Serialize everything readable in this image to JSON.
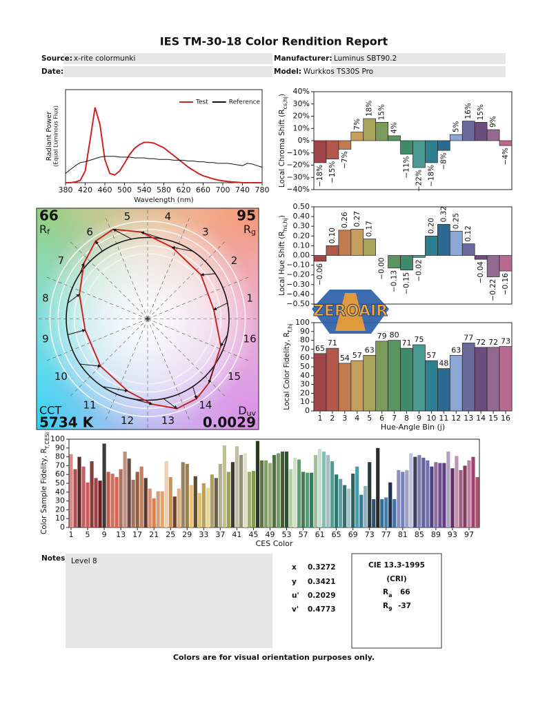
{
  "header": {
    "title": "IES TM-30-18 Color Rendition Report",
    "fields": [
      {
        "label": "Source:",
        "value": "x-rite colormunki"
      },
      {
        "label": "Manufacturer:",
        "value": "Luminus SBT90.2"
      },
      {
        "label": "Date:"
      },
      {
        "label": "Model:",
        "value": "Wurkkos TS30S Pro"
      }
    ]
  },
  "chart_data": [
    {
      "type": "line",
      "xlabel": "Wavelength (nm)",
      "ylabel": [
        "Radiant Power",
        "(Equal Luminous Flux)"
      ],
      "x": [
        380,
        390,
        400,
        410,
        420,
        430,
        440,
        450,
        460,
        470,
        480,
        490,
        500,
        510,
        520,
        530,
        540,
        550,
        560,
        570,
        580,
        590,
        600,
        610,
        620,
        630,
        640,
        650,
        660,
        670,
        680,
        690,
        700,
        710,
        720,
        730,
        740,
        750,
        760,
        770,
        780
      ],
      "series": [
        {
          "name": "Test",
          "color": "#cc2222",
          "values": [
            0,
            0,
            0.01,
            0.03,
            0.15,
            0.55,
            0.97,
            0.75,
            0.3,
            0.12,
            0.1,
            0.15,
            0.25,
            0.36,
            0.44,
            0.49,
            0.52,
            0.52,
            0.51,
            0.48,
            0.45,
            0.4,
            0.35,
            0.3,
            0.25,
            0.2,
            0.16,
            0.12,
            0.09,
            0.07,
            0.05,
            0.035,
            0.025,
            0.015,
            0.01,
            0.005,
            0,
            0,
            0,
            0,
            0
          ]
        },
        {
          "name": "Reference",
          "color": "#111111",
          "values": [
            0.12,
            0.17,
            0.22,
            0.26,
            0.27,
            0.29,
            0.31,
            0.33,
            0.34,
            0.34,
            0.34,
            0.33,
            0.33,
            0.33,
            0.32,
            0.32,
            0.32,
            0.31,
            0.31,
            0.3,
            0.3,
            0.3,
            0.29,
            0.29,
            0.29,
            0.28,
            0.28,
            0.27,
            0.27,
            0.26,
            0.26,
            0.25,
            0.25,
            0.25,
            0.24,
            0.23,
            0.22,
            0.25,
            0.24,
            0.22,
            0.2
          ]
        }
      ],
      "xlim": [
        380,
        780
      ],
      "xticks": [
        380,
        420,
        460,
        500,
        540,
        580,
        620,
        660,
        700,
        740,
        780
      ],
      "ylim": [
        0,
        1.2
      ],
      "legend": "upper right"
    },
    {
      "type": "bar",
      "ylabel": {
        "text": "Local Chroma Shift (R",
        "sub": "cs,hj",
        "tail": ")"
      },
      "values": [
        -18,
        -15,
        -7,
        7,
        18,
        15,
        4,
        -11,
        -22,
        -18,
        -8,
        5,
        16,
        15,
        9,
        -4
      ],
      "value_labels": [
        "−18%",
        "−15%",
        "−7%",
        "7%",
        "18%",
        "15%",
        "4%",
        "−11%",
        "−22%",
        "−18%",
        "−8%",
        "5%",
        "16%",
        "15%",
        "9%",
        "−4%"
      ],
      "colors": [
        "#a0454a",
        "#b3584c",
        "#c17b50",
        "#c79f5a",
        "#a7a55b",
        "#7b9b5a",
        "#5a9460",
        "#3f8b6c",
        "#4a9a92",
        "#2f7e8e",
        "#2d6a92",
        "#8ea6d6",
        "#6c6a9c",
        "#6b4d7e",
        "#94698f",
        "#b86a90"
      ],
      "ylim": [
        -40,
        40
      ],
      "yticks": [
        {
          "value": -40,
          "label": "−40%"
        },
        {
          "value": -30,
          "label": "−30%"
        },
        {
          "value": -20,
          "label": "−20%"
        },
        {
          "value": -10,
          "label": "−10%"
        },
        {
          "value": 0,
          "label": "0%"
        },
        {
          "value": 10,
          "label": "10%"
        },
        {
          "value": 20,
          "label": "20%"
        },
        {
          "value": 30,
          "label": "30%"
        },
        {
          "value": 40,
          "label": "40%"
        }
      ]
    },
    {
      "type": "bar",
      "ylabel": {
        "text": "Local Hue Shift (R",
        "sub": "hs,hj",
        "tail": ")"
      },
      "values": [
        -0.06,
        0.1,
        0.26,
        0.27,
        0.17,
        0,
        -0.13,
        -0.15,
        -0.02,
        0.2,
        0.32,
        0.25,
        0.12,
        -0.04,
        -0.22,
        -0.16
      ],
      "value_labels": [
        "−0.06",
        "0.10",
        "0.26",
        "0.27",
        "0.17",
        "−0.00",
        "−0.13",
        "−0.15",
        "−0.02",
        "0.20",
        "0.32",
        "0.25",
        "0.12",
        "−0.04",
        "−0.22",
        "−0.16"
      ],
      "colors": [
        "#a0454a",
        "#b3584c",
        "#c17b50",
        "#c79f5a",
        "#a7a55b",
        "#7b9b5a",
        "#5a9460",
        "#3f8b6c",
        "#4a9a92",
        "#2f7e8e",
        "#2d6a92",
        "#8ea6d6",
        "#6c6a9c",
        "#6b4d7e",
        "#94698f",
        "#b86a90"
      ],
      "ylim": [
        -0.5,
        0.5
      ],
      "yticks": [
        {
          "value": -0.5,
          "label": "−0.50"
        },
        {
          "value": -0.4,
          "label": "−0.40"
        },
        {
          "value": -0.3,
          "label": "−0.30"
        },
        {
          "value": -0.2,
          "label": "−0.20"
        },
        {
          "value": -0.1,
          "label": "−0.10"
        },
        {
          "value": 0,
          "label": "0.00"
        },
        {
          "value": 0.1,
          "label": "0.10"
        },
        {
          "value": 0.2,
          "label": "0.20"
        },
        {
          "value": 0.3,
          "label": "0.30"
        },
        {
          "value": 0.4,
          "label": "0.40"
        },
        {
          "value": 0.5,
          "label": "0.50"
        }
      ]
    },
    {
      "type": "bar",
      "xlabel": "Hue-Angle Bin (j)",
      "ylabel": {
        "text": "Local Color Fidelity, R",
        "sub": "f,hj"
      },
      "categories": [
        1,
        2,
        3,
        4,
        5,
        6,
        7,
        8,
        9,
        10,
        11,
        12,
        13,
        14,
        15,
        16
      ],
      "values": [
        65,
        71,
        54,
        57,
        63,
        79,
        80,
        71,
        75,
        57,
        48,
        63,
        77,
        72,
        72,
        73
      ],
      "colors": [
        "#a0454a",
        "#b3584c",
        "#c17b50",
        "#c79f5a",
        "#a7a55b",
        "#7b9b5a",
        "#5a9460",
        "#3f8b6c",
        "#4a9a92",
        "#2f7e8e",
        "#2d6a92",
        "#8ea6d6",
        "#6c6a9c",
        "#6b4d7e",
        "#94698f",
        "#b86a90"
      ],
      "ylim": [
        0,
        100
      ],
      "yticks": [
        0,
        10,
        20,
        30,
        40,
        50,
        60,
        70,
        80,
        90,
        100
      ]
    },
    {
      "type": "vector",
      "bins": [
        1,
        2,
        3,
        4,
        5,
        6,
        7,
        8,
        9,
        10,
        11,
        12,
        13,
        14,
        15,
        16
      ],
      "rf": 66,
      "rf_label": {
        "text": "R",
        "sub": "f"
      },
      "rg": 95,
      "rg_label": {
        "text": "R",
        "sub": "g"
      },
      "cct_label": "CCT",
      "cct": {
        "value": 5734,
        "label": "5734 K"
      },
      "duv_label": {
        "text": "D",
        "sub": "uv"
      },
      "duv": 0.0029,
      "test_color": "#cc2222",
      "reference_color": "#111111"
    },
    {
      "type": "bar",
      "xlabel": "CES Color",
      "ylabel": {
        "text": "Color Sample Fidelity, R",
        "sub": "f,CESi"
      },
      "categories": [
        1,
        null,
        null,
        null,
        5,
        null,
        null,
        null,
        9,
        null,
        null,
        null,
        13,
        null,
        null,
        null,
        17,
        null,
        null,
        null,
        21,
        null,
        null,
        null,
        25,
        null,
        null,
        null,
        29,
        null,
        null,
        null,
        33,
        null,
        null,
        null,
        37,
        null,
        null,
        null,
        41,
        null,
        null,
        null,
        45,
        null,
        null,
        null,
        49,
        null,
        null,
        null,
        53,
        null,
        null,
        null,
        57,
        null,
        null,
        null,
        61,
        null,
        null,
        null,
        65,
        null,
        null,
        null,
        69,
        null,
        null,
        null,
        73,
        null,
        null,
        null,
        77,
        null,
        null,
        null,
        81,
        null,
        null,
        null,
        85,
        null,
        null,
        null,
        89,
        null,
        null,
        null,
        93,
        null,
        null,
        null,
        97,
        null,
        null
      ],
      "values": [
        83,
        66,
        80,
        69,
        51,
        75,
        56,
        53,
        95,
        63,
        61,
        57,
        66,
        86,
        78,
        54,
        63,
        69,
        56,
        44,
        33,
        41,
        41,
        75,
        57,
        35,
        44,
        74,
        72,
        48,
        58,
        39,
        50,
        45,
        60,
        56,
        72,
        93,
        63,
        74,
        92,
        82,
        84,
        63,
        64,
        98,
        76,
        76,
        73,
        82,
        84,
        86,
        86,
        66,
        79,
        77,
        63,
        62,
        62,
        82,
        89,
        86,
        82,
        75,
        60,
        55,
        48,
        44,
        61,
        69,
        37,
        47,
        74,
        32,
        90,
        32,
        34,
        51,
        32,
        65,
        63,
        65,
        84,
        80,
        82,
        79,
        76,
        69,
        74,
        73,
        73,
        86,
        67,
        81,
        65,
        70,
        76,
        80,
        57
      ],
      "colors": [
        "#d98a8a",
        "#b05050",
        "#5a2a2a",
        "#c06060",
        "#d45a5a",
        "#8a3a3a",
        "#a04545",
        "#702020",
        "#3a3a3a",
        "#c06050",
        "#d07060",
        "#e06050",
        "#b07060",
        "#c09080",
        "#6a4a40",
        "#a07060",
        "#9a6040",
        "#c08060",
        "#5a3a2a",
        "#e09070",
        "#e08040",
        "#d0a080",
        "#f0a060",
        "#f0d0b0",
        "#d09050",
        "#704020",
        "#e0b080",
        "#9a8060",
        "#a08040",
        "#f0c070",
        "#5a4a30",
        "#e0c060",
        "#c0a050",
        "#e8d890",
        "#b0a060",
        "#6a6040",
        "#b0b090",
        "#c0c090",
        "#a0a050",
        "#3a3a2a",
        "#c0c0a0",
        "#909070",
        "#e0e0c0",
        "#a0b060",
        "#80a040",
        "#2a3a20",
        "#607040",
        "#80a060",
        "#90b070",
        "#507040",
        "#70a060",
        "#406030",
        "#305030",
        "#b0d0a0",
        "#d0e0c0",
        "#60a070",
        "#408050",
        "#50a070",
        "#308060",
        "#a0c0a0",
        "#c0e0d0",
        "#80c0b0",
        "#a0c0c0",
        "#50a090",
        "#208070",
        "#60a0a0",
        "#307070",
        "#a0c8c8",
        "#306060",
        "#40a0b0",
        "#308090",
        "#90b0c0",
        "#2a3a3a",
        "#305070",
        "#2a2a2a",
        "#3070a0",
        "#4080b0",
        "#203050",
        "#4070b0",
        "#9090c0",
        "#7080c0",
        "#a0a0c0",
        "#c0c0e0",
        "#404060",
        "#8080b0",
        "#6060a0",
        "#7070b0",
        "#504080",
        "#9070a0",
        "#705090",
        "#604080",
        "#b0a0c0",
        "#603060",
        "#c090b0",
        "#a06080",
        "#804060",
        "#c080a0",
        "#a04070",
        "#b05070"
      ],
      "ylim": [
        0,
        100
      ],
      "yticks": [
        0,
        10,
        20,
        30,
        40,
        50,
        60,
        70,
        80,
        90,
        100
      ]
    }
  ],
  "notes": {
    "label": "Notes:",
    "text": "Level 8"
  },
  "chromaticity": [
    {
      "label": "x",
      "value": 0.3272
    },
    {
      "label": "y",
      "value": 0.3421
    },
    {
      "label": "u'",
      "value": 0.2029
    },
    {
      "label": "v'",
      "value": 0.4773
    }
  ],
  "cri": {
    "title": "CIE 13.3-1995",
    "subtitle": "(CRI)",
    "ra": {
      "label": "R",
      "sub": "a",
      "value": 66
    },
    "r9": {
      "label": "R",
      "sub": "9",
      "value": -37
    }
  },
  "footer": "Colors are for visual orientation purposes only.",
  "watermark": "ZEROAIR"
}
